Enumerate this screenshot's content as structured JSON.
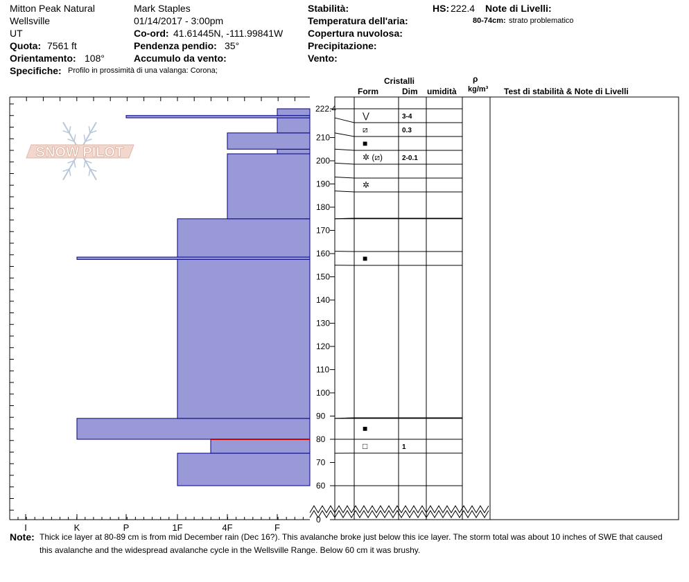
{
  "header": {
    "location": "Mitton Peak Natural",
    "area": "Wellsville",
    "state": "UT",
    "quota_label": "Quota:",
    "quota_value": "7561 ft",
    "orient_label": "Orientamento:",
    "orient_value": "108°",
    "spec_label": "Specifiche:",
    "spec_value": "Profilo in prossimità di una valanga: Corona;",
    "observer": "Mark Staples",
    "datetime": "01/14/2017 - 3:00pm",
    "coord_label": "Co-ord:",
    "coord_value": "41.61445N, -111.99841W",
    "slope_label": "Pendenza pendio:",
    "slope_value": "35°",
    "wind_load_label": "Accumulo da vento:",
    "stability_label": "Stabilità:",
    "airtemp_label": "Temperatura dell'aria:",
    "cloud_label": "Copertura nuvolosa:",
    "precip_label": "Precipitazione:",
    "wind_label": "Vento:",
    "hs_label": "HS:",
    "hs_value": "222.4",
    "layer_notes_label": "Note di Livelli:",
    "layer_note_range": "80-74cm:",
    "layer_note_text": "strato problematico"
  },
  "columns": {
    "cristalli": "Cristalli",
    "form": "Form",
    "dim": "Dim",
    "umidita": "umidità",
    "rho": "ρ",
    "rho_unit": "kg/m³",
    "stability_notes": "Test di stabilità & Note di Livelli"
  },
  "logo_text": "SNOW PILOT",
  "note": {
    "label": "Note:",
    "line1": "Thick ice layer at 80-89 cm is from mid December rain (Dec 16?). This avalanche broke just below this ice layer. The storm total was about 10 inches of SWE that caused",
    "line2": "this avalanche and the widespread avalanche cycle in the Wellsville Range. Below 60 cm it was brushy."
  },
  "chart_data": {
    "type": "bar",
    "title": "",
    "xlabel": "",
    "ylabel": "",
    "hardness_scale": [
      "I",
      "K",
      "P",
      "1F",
      "4F",
      "F"
    ],
    "ylim": [
      0,
      222.4
    ],
    "y_ticks": [
      0,
      60,
      70,
      80,
      90,
      100,
      110,
      120,
      130,
      140,
      150,
      160,
      170,
      180,
      190,
      200,
      210,
      222.4
    ],
    "bar_color": "#9999d8",
    "problem_layer_color": "#cc0000",
    "layers": [
      {
        "bottom": 60,
        "top": 74,
        "hardness": "1F"
      },
      {
        "bottom": 74,
        "top": 80,
        "hardness": "4F+"
      },
      {
        "bottom": 80,
        "top": 89,
        "hardness": "K"
      },
      {
        "bottom": 89,
        "top": 175,
        "hardness": "1F"
      },
      {
        "bottom": 157.5,
        "top": 158.5,
        "hardness": "K"
      },
      {
        "bottom": 175,
        "top": 203,
        "hardness": "4F"
      },
      {
        "bottom": 203,
        "top": 205,
        "hardness": "F"
      },
      {
        "bottom": 205,
        "top": 212,
        "hardness": "4F"
      },
      {
        "bottom": 212,
        "top": 218.5,
        "hardness": "F"
      },
      {
        "bottom": 218.5,
        "top": 219.5,
        "hardness": "P"
      },
      {
        "bottom": 219.5,
        "top": 222.4,
        "hardness": "F"
      }
    ],
    "problem_layer_height": 80,
    "crystal_rows": [
      {
        "top": 222.4,
        "bottom": 218.5,
        "form": "⋁",
        "dim": "3-4"
      },
      {
        "top": 218.5,
        "bottom": 212,
        "form": "⧄",
        "dim": "0.3"
      },
      {
        "top": 212,
        "bottom": 205,
        "form": "■",
        "dim": ""
      },
      {
        "top": 205,
        "bottom": 199,
        "form": "✲ (⧄)",
        "dim": "2-0.1"
      },
      {
        "top": 199,
        "bottom": 193,
        "form": "",
        "dim": ""
      },
      {
        "top": 193,
        "bottom": 187,
        "form": "✲",
        "dim": ""
      },
      {
        "top": 187,
        "bottom": 175,
        "form": "",
        "dim": ""
      },
      {
        "top": 175,
        "bottom": 161,
        "form": "",
        "dim": ""
      },
      {
        "top": 161,
        "bottom": 155,
        "form": "■",
        "dim": ""
      },
      {
        "top": 155,
        "bottom": 89,
        "form": "",
        "dim": ""
      },
      {
        "top": 89,
        "bottom": 80,
        "form": "■",
        "dim": ""
      },
      {
        "top": 80,
        "bottom": 74,
        "form": "□",
        "dim": "1"
      },
      {
        "top": 74,
        "bottom": 60,
        "form": "",
        "dim": ""
      }
    ]
  }
}
